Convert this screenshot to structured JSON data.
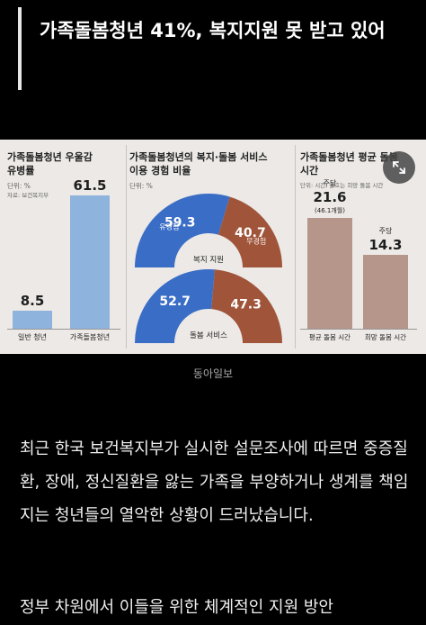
{
  "post": {
    "title": "가족돌봄청년 41%, 복지지원 못 받고 있어",
    "image_caption": "동아일보",
    "paragraph1": "최근 한국 보건복지부가 실시한 설문조사에 따르면 중증질환, 장애, 정신질환을 앓는 가족을 부양하거나 생계를 책임지는 청년들의 열악한 상황이 드러났습니다.",
    "paragraph2": "정부 차원에서 이들을 위한 체계적인 지원 방안"
  },
  "infographic": {
    "panel1": {
      "title_line1": "가족돌봄청년 우울감",
      "title_line2": "유병률",
      "unit": "단위: %",
      "source": "자료: 보건복지부",
      "chart_data": {
        "type": "bar",
        "categories": [
          "일반 청년",
          "가족돌봄청년"
        ],
        "values": [
          8.5,
          61.5
        ],
        "value_labels": [
          "8.5",
          "61.5"
        ],
        "ylim": [
          0,
          70
        ]
      }
    },
    "panel2": {
      "title_line1": "가족돌봄청년의 복지·돌봄 서비스",
      "title_line2": "이용 경험 비율",
      "unit": "단위: %",
      "chart_data": [
        {
          "type": "pie",
          "categories": [
            "유경험",
            "무경험"
          ],
          "values": [
            59.3,
            40.7
          ],
          "value_labels": [
            "59.3",
            "40.7"
          ],
          "center_label": "복지 지원",
          "colors": [
            "#3a6dc6",
            "#a0553a"
          ]
        },
        {
          "type": "pie",
          "categories": [
            "유경험",
            "무경험"
          ],
          "values": [
            52.7,
            47.3
          ],
          "value_labels": [
            "52.7",
            "47.3"
          ],
          "center_label": "돌봄 서비스",
          "colors": [
            "#3a6dc6",
            "#a0553a"
          ]
        }
      ],
      "pill_labels": [
        "유경험",
        "무경험"
      ]
    },
    "panel3": {
      "title_line1": "가족돌봄청년 평균 돌봄",
      "title_line2": "시간",
      "unit": "단위: 시간, 괄호는 희망 돌봄 시간",
      "chart_data": {
        "type": "bar",
        "categories": [
          "평균 돌봄 시간",
          "희망 돌봄 시간"
        ],
        "values": [
          21.6,
          14.3
        ],
        "value_labels": [
          "21.6",
          "14.3"
        ],
        "top_labels": [
          "주당",
          "주당"
        ],
        "extra_label": "(46.1개월)",
        "ylim": [
          0,
          35
        ]
      }
    }
  },
  "ui": {
    "expand_icon": "expand-arrows-icon"
  },
  "colors": {
    "background": "#000000",
    "blue": "#3a6dc6",
    "brown": "#a0553a",
    "light_blue_bar": "#8eb3dc",
    "brown_bar": "#b6958b"
  }
}
